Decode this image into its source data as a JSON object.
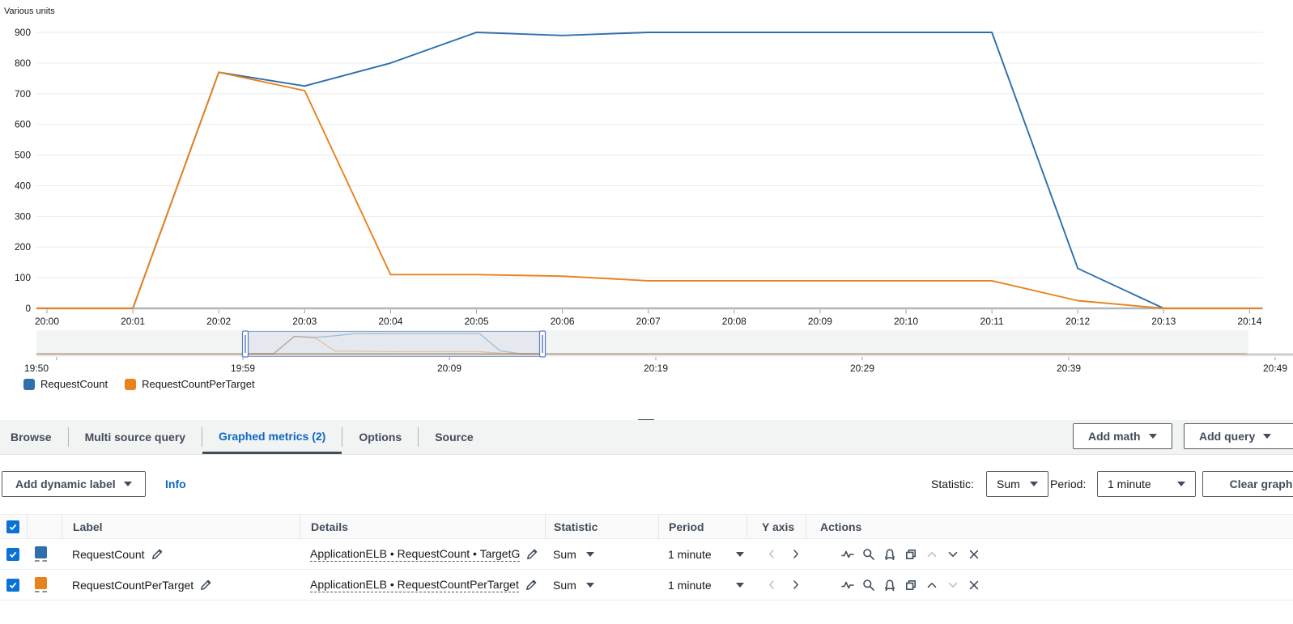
{
  "chart_data": {
    "type": "line",
    "unit_label": "Various units",
    "x": [
      "20:00",
      "20:01",
      "20:02",
      "20:03",
      "20:04",
      "20:05",
      "20:06",
      "20:07",
      "20:08",
      "20:09",
      "20:10",
      "20:11",
      "20:12",
      "20:13",
      "20:14"
    ],
    "series": [
      {
        "name": "RequestCount",
        "color": "#2e6fac",
        "values": [
          0,
          0,
          770,
          725,
          800,
          900,
          890,
          900,
          900,
          900,
          900,
          900,
          130,
          0,
          0
        ]
      },
      {
        "name": "RequestCountPerTarget",
        "color": "#e8821d",
        "values": [
          0,
          0,
          770,
          710,
          110,
          110,
          105,
          90,
          90,
          90,
          90,
          90,
          25,
          0,
          0
        ]
      }
    ],
    "ylim": [
      0,
      900
    ],
    "y_ticks": [
      900,
      800,
      700,
      600,
      500,
      400,
      300,
      200,
      100,
      0
    ],
    "grid": "horizontal",
    "legend_position": "bottom-left",
    "brush": {
      "labels": [
        "19:50",
        "19:59",
        "20:09",
        "20:19",
        "20:29",
        "20:39",
        "20:49"
      ],
      "selection_start_label": "20:00",
      "selection_end_label": "20:13"
    }
  },
  "panel": {
    "tabs": [
      "Browse",
      "Multi source query",
      "Graphed metrics (2)",
      "Options",
      "Source"
    ],
    "active_tab": "Graphed metrics (2)",
    "add_math": "Add math",
    "add_query": "Add query",
    "add_dynamic_label": "Add dynamic label",
    "info": "Info",
    "statistic_label": "Statistic:",
    "statistic_value": "Sum",
    "period_label": "Period:",
    "period_value": "1 minute",
    "clear_graph": "Clear graph"
  },
  "table": {
    "headers": [
      "Label",
      "Details",
      "Statistic",
      "Period",
      "Y axis",
      "Actions"
    ],
    "rows": [
      {
        "checked": true,
        "color": "#2e6fac",
        "label": "RequestCount",
        "details": "ApplicationELB • RequestCount • TargetG",
        "statistic": "Sum",
        "period": "1 minute"
      },
      {
        "checked": true,
        "color": "#e8821d",
        "label": "RequestCountPerTarget",
        "details": "ApplicationELB • RequestCountPerTarget",
        "statistic": "Sum",
        "period": "1 minute"
      }
    ],
    "action_icons": [
      "sparkline-icon",
      "search-icon",
      "alarm-icon",
      "duplicate-icon",
      "move-up-icon",
      "move-down-icon",
      "remove-icon"
    ]
  },
  "colors": {
    "accent": "#0d69c7",
    "series1": "#2e6fac",
    "series2": "#e8821d",
    "icon": "#414d5c",
    "disabled_icon": "#b7c1cb"
  }
}
